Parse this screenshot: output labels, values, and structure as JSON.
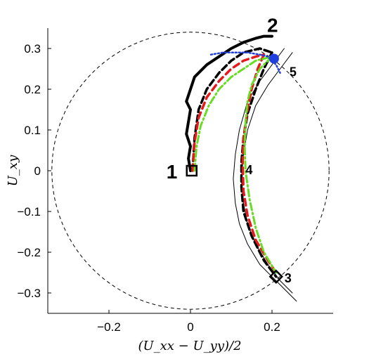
{
  "chart_data": {
    "type": "line",
    "title": "",
    "xlabel": "(U_xx − U_yy)/2",
    "ylabel": "U_xy",
    "xlim": [
      -0.35,
      0.35
    ],
    "ylim": [
      -0.35,
      0.35
    ],
    "x_ticks": [
      -0.2,
      0,
      0.2
    ],
    "x_tick_labels": [
      "−0.2",
      "0",
      "0.2"
    ],
    "y_ticks": [
      -0.3,
      -0.2,
      -0.1,
      0,
      0.1,
      0.2,
      0.3
    ],
    "y_tick_labels": [
      "−0.3",
      "−0.2",
      "−0.1",
      "0",
      "0.1",
      "0.2",
      "0.3"
    ],
    "grid": false,
    "legend": "none",
    "colors": {
      "black": "#000000",
      "red": "#e41a1c",
      "green": "#66dd22",
      "blue": "#1f3fdc",
      "circle": "#000000"
    },
    "reference_circle": {
      "center": [
        0,
        0
      ],
      "radius": 0.34
    },
    "series": [
      {
        "style": "thick-solid-black",
        "x": [
          0.0,
          -0.005,
          0.0,
          -0.01,
          -0.005,
          0.0,
          -0.01,
          0.0,
          0.01,
          0.04,
          0.07,
          0.1,
          0.13,
          0.16,
          0.18,
          0.2
        ],
        "y": [
          0.0,
          0.03,
          0.06,
          0.09,
          0.12,
          0.15,
          0.17,
          0.2,
          0.23,
          0.26,
          0.28,
          0.3,
          0.315,
          0.325,
          0.33,
          0.33
        ]
      },
      {
        "style": "thin-solid-black",
        "x": [
          0.23,
          0.2,
          0.17,
          0.14,
          0.12,
          0.11,
          0.105,
          0.11,
          0.12,
          0.14,
          0.17,
          0.21,
          0.24,
          0.26
        ],
        "y": [
          0.3,
          0.26,
          0.22,
          0.17,
          0.1,
          0.04,
          -0.02,
          -0.08,
          -0.13,
          -0.18,
          -0.23,
          -0.27,
          -0.3,
          -0.32
        ]
      },
      {
        "style": "thin-solid-black",
        "x": [
          0.25,
          0.22,
          0.19,
          0.16,
          0.14,
          0.13,
          0.125,
          0.13,
          0.14,
          0.16,
          0.19,
          0.22,
          0.25
        ],
        "y": [
          0.29,
          0.25,
          0.21,
          0.16,
          0.1,
          0.04,
          -0.02,
          -0.08,
          -0.13,
          -0.18,
          -0.23,
          -0.27,
          -0.3
        ]
      },
      {
        "style": "dashed-black",
        "x": [
          0.005,
          0.01,
          0.02,
          0.04,
          0.07,
          0.1,
          0.13,
          0.17,
          0.2
        ],
        "y": [
          0.0,
          0.08,
          0.15,
          0.2,
          0.24,
          0.27,
          0.29,
          0.3,
          0.29
        ]
      },
      {
        "style": "dashed-black",
        "x": [
          0.2,
          0.18,
          0.16,
          0.14,
          0.13,
          0.125,
          0.125,
          0.13,
          0.15,
          0.18,
          0.21
        ],
        "y": [
          0.29,
          0.25,
          0.2,
          0.14,
          0.08,
          0.02,
          -0.04,
          -0.1,
          -0.16,
          -0.22,
          -0.26
        ]
      },
      {
        "style": "dashed-red",
        "x": [
          0.005,
          0.01,
          0.02,
          0.04,
          0.07,
          0.1,
          0.13,
          0.16,
          0.18
        ],
        "y": [
          0.0,
          0.07,
          0.13,
          0.18,
          0.22,
          0.25,
          0.27,
          0.28,
          0.285
        ]
      },
      {
        "style": "dashed-red",
        "x": [
          0.18,
          0.165,
          0.15,
          0.14,
          0.13,
          0.128,
          0.13,
          0.14,
          0.16,
          0.19,
          0.21
        ],
        "y": [
          0.285,
          0.25,
          0.2,
          0.15,
          0.08,
          0.02,
          -0.05,
          -0.11,
          -0.17,
          -0.22,
          -0.25
        ]
      },
      {
        "style": "dashdot-green",
        "x": [
          0.01,
          0.015,
          0.025,
          0.045,
          0.07,
          0.1,
          0.13,
          0.16,
          0.2
        ],
        "y": [
          0.0,
          0.06,
          0.11,
          0.16,
          0.2,
          0.23,
          0.25,
          0.27,
          0.28
        ]
      },
      {
        "style": "dashdot-green",
        "x": [
          0.2,
          0.17,
          0.15,
          0.14,
          0.135,
          0.133,
          0.135,
          0.145,
          0.16,
          0.18,
          0.21
        ],
        "y": [
          0.28,
          0.25,
          0.21,
          0.17,
          0.12,
          0.06,
          0.0,
          -0.07,
          -0.14,
          -0.2,
          -0.25
        ]
      },
      {
        "style": "dotted-blue",
        "x": [
          0.05,
          0.08,
          0.11,
          0.14,
          0.17,
          0.19,
          0.21,
          0.22
        ],
        "y": [
          0.285,
          0.29,
          0.29,
          0.29,
          0.285,
          0.28,
          0.26,
          0.24
        ]
      }
    ],
    "markers": [
      {
        "label": "1",
        "x": 0.003,
        "y": 0.0,
        "marker": "square"
      },
      {
        "label": "2",
        "x": 0.2,
        "y": 0.33,
        "marker": "none"
      },
      {
        "label": "3",
        "x": 0.21,
        "y": -0.26,
        "marker": "diamond"
      },
      {
        "label": "4",
        "x": 0.13,
        "y": 0.0,
        "marker": "none"
      },
      {
        "label": "5",
        "x": 0.205,
        "y": 0.275,
        "marker": "circle-blue"
      }
    ]
  }
}
